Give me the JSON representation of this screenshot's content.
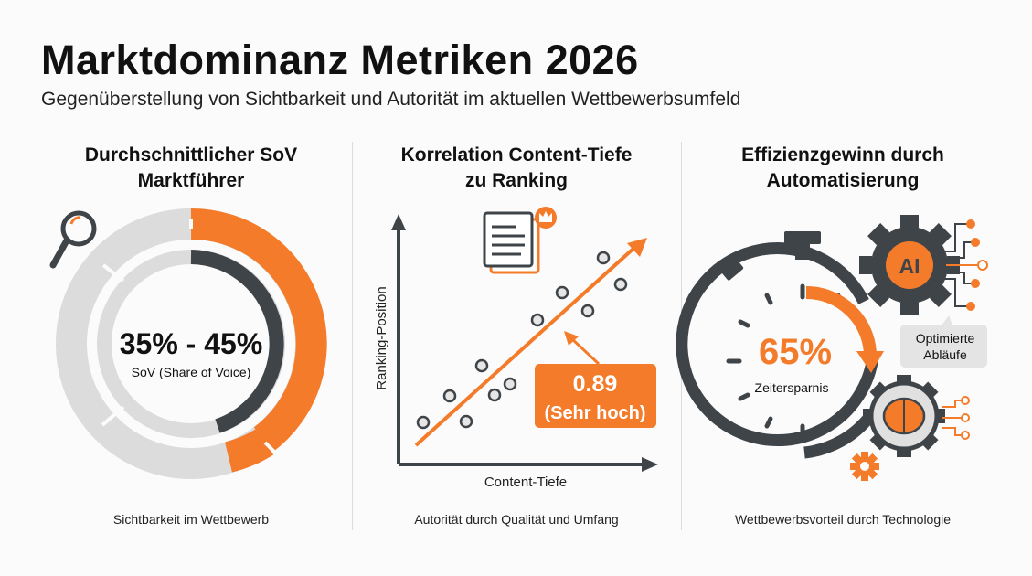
{
  "header": {
    "title": "Marktdominanz Metriken 2026",
    "subtitle": "Gegenüberstellung von Sichtbarkeit und Autorität im aktuellen Wettbewerbsumfeld"
  },
  "colors": {
    "accent": "#f47b2a",
    "dark": "#3f4449",
    "light": "#dcdcdc"
  },
  "panels": [
    {
      "heading_line1": "Durchschnittlicher SoV",
      "heading_line2": "Marktführer",
      "value": "35% - 45%",
      "value_label": "SoV (Share of Voice)",
      "caption": "Sichtbarkeit im Wettbewerb",
      "icon": "magnifier-icon"
    },
    {
      "heading_line1": "Korrelation Content-Tiefe",
      "heading_line2": "zu Ranking",
      "y_axis_label": "Ranking-Position",
      "x_axis_label": "Content-Tiefe",
      "value": "0.89",
      "value_label": "(Sehr hoch)",
      "caption": "Autorität durch Qualität und Umfang",
      "icon": "document-crown-icon"
    },
    {
      "heading_line1": "Effizienzgewinn durch",
      "heading_line2": "Automatisierung",
      "value": "65%",
      "value_label": "Zeitersparnis",
      "gear_label": "AI",
      "callout_line1": "Optimierte",
      "callout_line2": "Abläufe",
      "caption": "Wettbewerbsvorteil durch Technologie",
      "icon": "stopwatch-icon"
    }
  ]
}
